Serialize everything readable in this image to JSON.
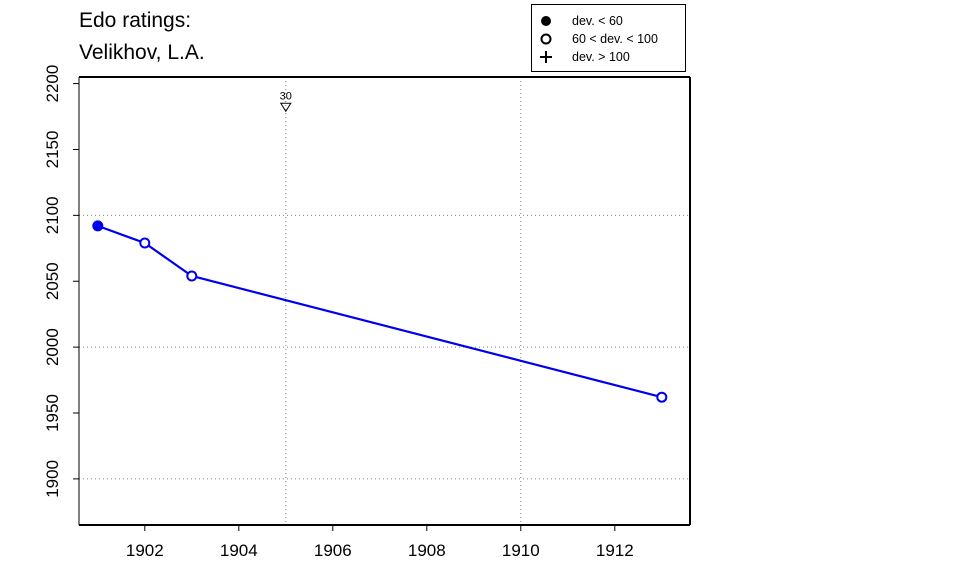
{
  "title": "Edo ratings:",
  "subtitle": "Velikhov, L.A.",
  "legend": [
    {
      "symbol": "filled-circle",
      "label": "dev. < 60"
    },
    {
      "symbol": "open-circle",
      "label": "60 < dev. < 100"
    },
    {
      "symbol": "plus",
      "label": "dev. > 100"
    }
  ],
  "colors": {
    "series": "#0000ee",
    "axis": "#000000",
    "grid": "#808080"
  },
  "chart_data": {
    "type": "line",
    "title": "Edo ratings:",
    "subtitle": "Velikhov, L.A.",
    "xlabel": "",
    "ylabel": "",
    "xlim": [
      1900.6,
      1913.6
    ],
    "ylim": [
      1865,
      2205
    ],
    "x_ticks": [
      1902,
      1904,
      1906,
      1908,
      1910,
      1912
    ],
    "y_ticks": [
      1900,
      1950,
      2000,
      2050,
      2100,
      2150,
      2200
    ],
    "x_grid": [
      1905,
      1910
    ],
    "y_grid": [
      1900,
      2000,
      2100
    ],
    "grid": "dotted",
    "legend_position": "top-right",
    "series": [
      {
        "points": [
          {
            "x": 1901,
            "y": 2092,
            "marker": "filled-circle"
          },
          {
            "x": 1902,
            "y": 2079,
            "marker": "open-circle"
          },
          {
            "x": 1903,
            "y": 2054,
            "marker": "open-circle"
          },
          {
            "x": 1913,
            "y": 1962,
            "marker": "open-circle"
          }
        ]
      }
    ],
    "annotations": [
      {
        "x": 1905,
        "y": 2182,
        "label": "30",
        "marker": "down-triangle"
      }
    ]
  }
}
